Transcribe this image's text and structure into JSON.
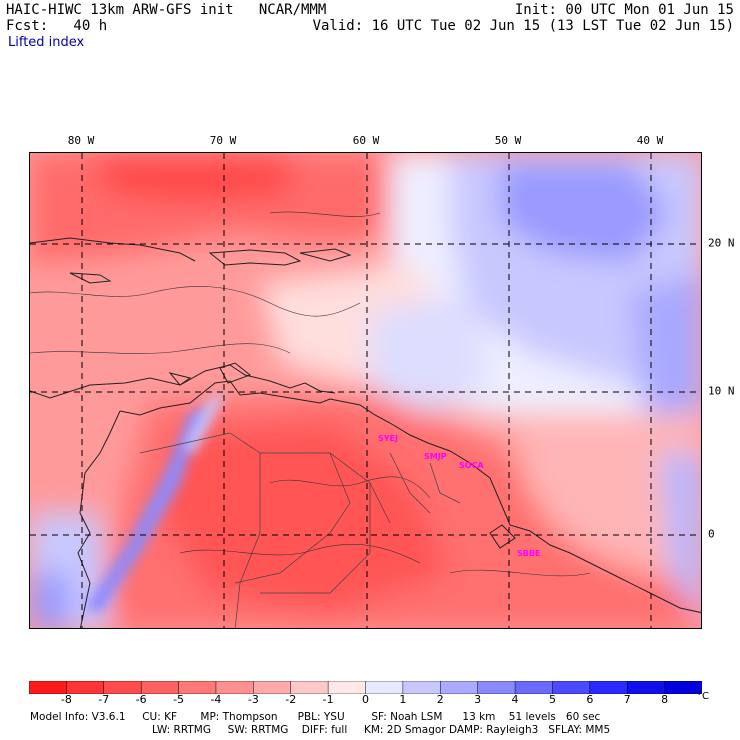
{
  "header": {
    "model_title": "HAIC-HIWC 13km ARW-GFS init   NCAR/MMM",
    "forecast": "Fcst:   40 h",
    "field": "Lifted index",
    "init": "Init: 00 UTC Mon 01 Jun 15",
    "valid": "Valid: 16 UTC Tue 02 Jun 15 (13 LST Tue 02 Jun 15)"
  },
  "map": {
    "lon_labels": [
      "80 W",
      "70 W",
      "60 W",
      "50 W",
      "40 W"
    ],
    "lat_labels": [
      "20 N",
      "10 N",
      "0"
    ],
    "stations": [
      "SYEJ",
      "SMJP",
      "SOCA",
      "SBBE"
    ]
  },
  "colorbar": {
    "labels": [
      "-8",
      "-7",
      "-6",
      "-5",
      "-4",
      "-3",
      "-2",
      "-1",
      "0",
      "1",
      "2",
      "3",
      "4",
      "5",
      "6",
      "7",
      "8"
    ],
    "unit": "°C",
    "colors": [
      "#ff1a1a",
      "#ff3535",
      "#ff4d4d",
      "#ff6060",
      "#ff7878",
      "#ff9090",
      "#ffaaaa",
      "#ffc8c8",
      "#ffe8e8",
      "#e8e8ff",
      "#c8c8ff",
      "#aaaaff",
      "#8a8aff",
      "#6a6aff",
      "#4a4aff",
      "#2a2aff",
      "#1010ee",
      "#0000dd"
    ]
  },
  "footer": {
    "line1": "Model Info: V3.6.1     CU: KF       MP: Thompson      PBL: YSU        SF: Noah LSM      13 km    51 levels   60 sec",
    "line2": "LW: RRTMG     SW: RRTMG    DIFF: full     KM: 2D Smagor DAMP: Rayleigh3   SFLAY: MM5"
  }
}
